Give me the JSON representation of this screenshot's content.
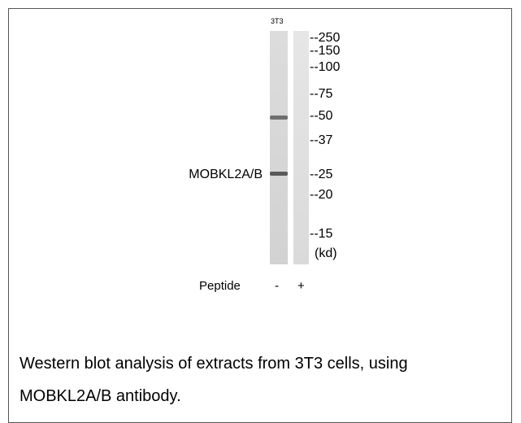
{
  "lane_label": "3T3",
  "markers": [
    "--250",
    "--150",
    "--100",
    "--75",
    "--50",
    "--37",
    "--25",
    "--20",
    "--15"
  ],
  "unit": "(kd)",
  "band_label": "MOBKL2A/B",
  "peptide": {
    "label": "Peptide",
    "lanes": [
      "-",
      "+"
    ]
  },
  "caption": [
    "Western blot analysis of extracts from 3T3 cells, using",
    "MOBKL2A/B antibody."
  ]
}
